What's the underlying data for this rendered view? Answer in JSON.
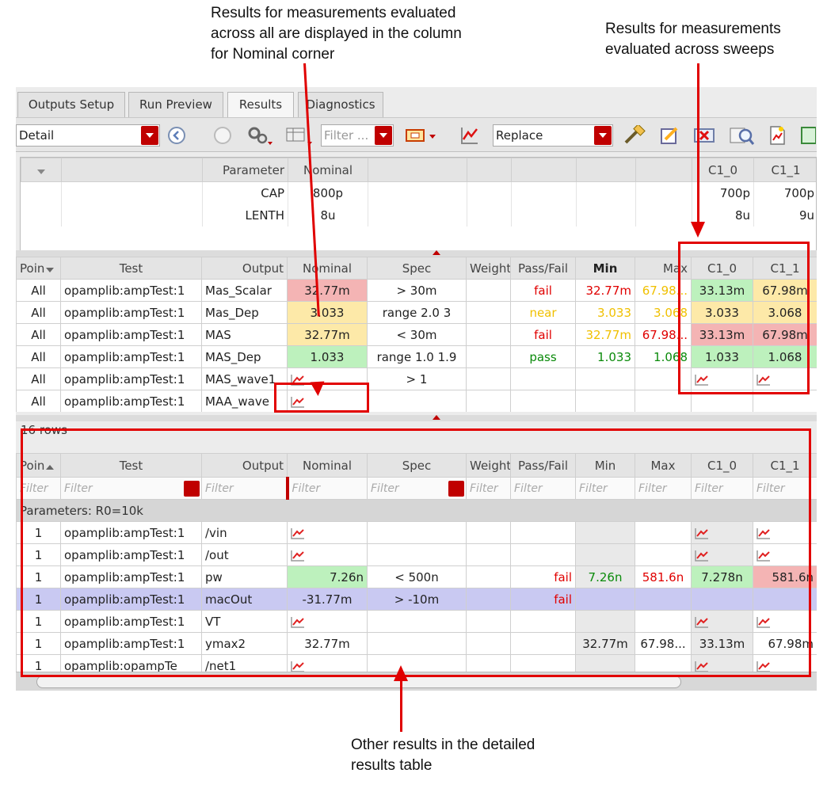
{
  "callouts": {
    "nominal": [
      "Results for measurements evaluated",
      "across all are displayed in the column",
      "for Nominal corner"
    ],
    "sweeps": [
      "Results for measurements",
      "evaluated across sweeps"
    ],
    "detail": [
      "Other results in the detailed",
      "results table"
    ]
  },
  "tabs": [
    {
      "label": "Outputs Setup"
    },
    {
      "label": "Run Preview"
    },
    {
      "label": "Results"
    },
    {
      "label": "Diagnostics"
    }
  ],
  "toolbar": {
    "view_mode": "Detail",
    "filter_placeholder": "Filter ...",
    "plot_mode": "Replace"
  },
  "params": {
    "headers": [
      "Parameter",
      "Nominal",
      "C1_0",
      "C1_1"
    ],
    "rows": [
      {
        "name": "CAP",
        "nominal": "800p",
        "c1_0": "700p",
        "c1_1": "700p"
      },
      {
        "name": "LENTH",
        "nominal": "8u",
        "c1_0": "8u",
        "c1_1": "9u"
      }
    ]
  },
  "summary": {
    "headers": [
      "Poin",
      "Test",
      "Output",
      "Nominal",
      "Spec",
      "Weight",
      "Pass/Fail",
      "Min",
      "Max",
      "C1_0",
      "C1_1"
    ],
    "rows": [
      {
        "point": "All",
        "test": "opamplib:ampTest:1",
        "output": "Mas_Scalar",
        "nominal": "32.77m",
        "spec": "> 30m",
        "passfail": "fail",
        "min": "32.77m",
        "max": "67.98...",
        "c1_0": "33.13m",
        "c1_1": "67.98m"
      },
      {
        "point": "All",
        "test": "opamplib:ampTest:1",
        "output": "Mas_Dep",
        "nominal": "3.033",
        "spec": "range 2.0 3",
        "passfail": "near",
        "min": "3.033",
        "max": "3.068",
        "c1_0": "3.033",
        "c1_1": "3.068"
      },
      {
        "point": "All",
        "test": "opamplib:ampTest:1",
        "output": "MAS",
        "nominal": "32.77m",
        "spec": "< 30m",
        "passfail": "fail",
        "min": "32.77m",
        "max": "67.98...",
        "c1_0": "33.13m",
        "c1_1": "67.98m"
      },
      {
        "point": "All",
        "test": "opamplib:ampTest:1",
        "output": "MAS_Dep",
        "nominal": "1.033",
        "spec": "range 1.0 1.9",
        "passfail": "pass",
        "min": "1.033",
        "max": "1.068",
        "c1_0": "1.033",
        "c1_1": "1.068"
      },
      {
        "point": "All",
        "test": "opamplib:ampTest:1",
        "output": "MAS_wave1",
        "spec": "> 1"
      },
      {
        "point": "All",
        "test": "opamplib:ampTest:1",
        "output": "MAA_wave"
      }
    ]
  },
  "detail": {
    "row_count": "16 rows",
    "headers": [
      "Poin",
      "Test",
      "Output",
      "Nominal",
      "Spec",
      "Weight",
      "Pass/Fail",
      "Min",
      "Max",
      "C1_0",
      "C1_1"
    ],
    "filter_label": "Filter",
    "group_label": "Parameters: R0=10k",
    "rows": [
      {
        "point": "1",
        "test": "opamplib:ampTest:1",
        "output": "/vin"
      },
      {
        "point": "1",
        "test": "opamplib:ampTest:1",
        "output": "/out"
      },
      {
        "point": "1",
        "test": "opamplib:ampTest:1",
        "output": "pw",
        "nominal": "7.26n",
        "spec": "< 500n",
        "passfail": "fail",
        "min": "7.26n",
        "max": "581.6n",
        "c1_0": "7.278n",
        "c1_1": "581.6n"
      },
      {
        "point": "1",
        "test": "opamplib:ampTest:1",
        "output": "macOut",
        "nominal": "-31.77m",
        "spec": "> -10m",
        "passfail": "fail"
      },
      {
        "point": "1",
        "test": "opamplib:ampTest:1",
        "output": "VT"
      },
      {
        "point": "1",
        "test": "opamplib:ampTest:1",
        "output": "ymax2",
        "nominal": "32.77m",
        "min": "32.77m",
        "max": "67.98...",
        "c1_0": "33.13m",
        "c1_1": "67.98m"
      },
      {
        "point": "1",
        "test": "opamplib:opampTe",
        "output": "/net1"
      }
    ]
  },
  "colors": {
    "accent": "#c00000",
    "fail_bg": "#f4b4b4",
    "near_bg": "#fde9a8",
    "pass_bg": "#bdf1bd",
    "selected_row": "#c9c9f2",
    "annotation": "#e00000"
  }
}
